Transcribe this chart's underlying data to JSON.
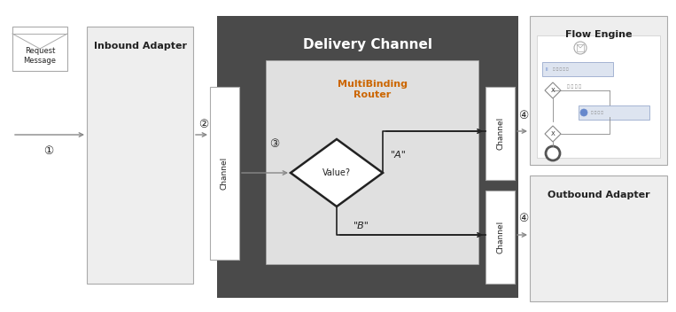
{
  "bg_color": "#ffffff",
  "fig_width": 7.63,
  "fig_height": 3.52,
  "delivery_channel_bg": "#4a4a4a",
  "delivery_channel_title": "Delivery Channel",
  "delivery_channel_title_color": "#ffffff",
  "inbound_adapter_label": "Inbound Adapter",
  "flow_engine_label": "Flow Engine",
  "outbound_adapter_label": "Outbound Adapter",
  "request_message_label": "Request\nMessage",
  "multibinding_router_label": "MultiBinding\nRouter",
  "value_label": "Value?",
  "label_A": "\"A\"",
  "label_B": "\"B\"",
  "channel_label": "Channel",
  "circled_1": "①",
  "circled_2": "②",
  "circled_3": "③",
  "circled_4": "④",
  "light_gray": "#eeeeee",
  "inner_gray": "#e0e0e0",
  "dark_color": "#222222",
  "orange_color": "#cc6600",
  "arrow_color": "#888888",
  "box_edge_color": "#aaaaaa",
  "white": "#ffffff"
}
